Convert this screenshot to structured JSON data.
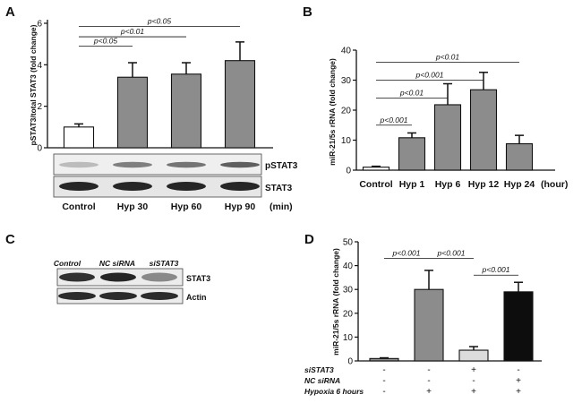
{
  "chart_data": [
    {
      "panel": "A",
      "type": "bar",
      "title": "",
      "ylabel": "pSTAT3/total STAT3 (fold change)",
      "xlabel": "(min)",
      "ylim": [
        0,
        6
      ],
      "yticks": [
        "0",
        "2",
        "4",
        "6"
      ],
      "categories": [
        "Control",
        "Hyp 30",
        "Hyp 60",
        "Hyp 90"
      ],
      "values": [
        1.0,
        3.4,
        3.55,
        4.2
      ],
      "errors": [
        0.15,
        0.7,
        0.55,
        0.9
      ],
      "colors": [
        "#ffffff",
        "#8c8c8c",
        "#8c8c8c",
        "#8c8c8c"
      ],
      "significance": [
        {
          "label": "p<0.05",
          "from": 0,
          "to": 1,
          "level": 4.9
        },
        {
          "label": "p<0.01",
          "from": 0,
          "to": 2,
          "level": 5.35
        },
        {
          "label": "p<0.05",
          "from": 0,
          "to": 3,
          "level": 5.85
        }
      ],
      "blot_labels": [
        "pSTAT3",
        "STAT3"
      ]
    },
    {
      "panel": "B",
      "type": "bar",
      "title": "",
      "ylabel": "miR-21/5s rRNA (fold change)",
      "xlabel": "(hour)",
      "ylim": [
        0,
        40
      ],
      "yticks": [
        "0",
        "10",
        "20",
        "30",
        "40"
      ],
      "categories": [
        "Control",
        "Hyp 1",
        "Hyp 6",
        "Hyp 12",
        "Hyp 24"
      ],
      "values": [
        1.0,
        10.8,
        21.8,
        26.8,
        8.8
      ],
      "errors": [
        0.3,
        1.6,
        7.0,
        5.8,
        2.8
      ],
      "colors": [
        "#ffffff",
        "#8c8c8c",
        "#8c8c8c",
        "#8c8c8c",
        "#8c8c8c"
      ],
      "significance": [
        {
          "label": "p<0.001",
          "from": 0,
          "to": 1,
          "level": 15
        },
        {
          "label": "p<0.01",
          "from": 0,
          "to": 2,
          "level": 24
        },
        {
          "label": "p<0.001",
          "from": 0,
          "to": 3,
          "level": 30
        },
        {
          "label": "p<0.01",
          "from": 0,
          "to": 4,
          "level": 36
        }
      ]
    },
    {
      "panel": "C",
      "type": "table",
      "lane_labels": [
        "Control",
        "NC siRNA",
        "siSTAT3"
      ],
      "blot_labels": [
        "STAT3",
        "Actin"
      ]
    },
    {
      "panel": "D",
      "type": "bar",
      "title": "",
      "ylabel": "miR-21/5s rRNA (fold change)",
      "ylim": [
        0,
        50
      ],
      "yticks": [
        "0",
        "10",
        "20",
        "30",
        "40",
        "50"
      ],
      "values": [
        1.0,
        30.0,
        4.5,
        29.0
      ],
      "errors": [
        0.3,
        8.0,
        1.5,
        4.0
      ],
      "colors": [
        "#8c8c8c",
        "#8c8c8c",
        "#dcdcdc",
        "#0d0d0d"
      ],
      "significance": [
        {
          "label": "p<0.001",
          "from": 0,
          "to": 1,
          "level": 43
        },
        {
          "label": "p<0.001",
          "from": 1,
          "to": 2,
          "level": 43
        },
        {
          "label": "p<0.001",
          "from": 2,
          "to": 3,
          "level": 36
        }
      ],
      "conditions": [
        {
          "label": "siSTAT3",
          "signs": [
            "-",
            "-",
            "+",
            "-"
          ]
        },
        {
          "label": "NC siRNA",
          "signs": [
            "-",
            "-",
            "-",
            "+"
          ]
        },
        {
          "label": "Hypoxia  6 hours",
          "signs": [
            "-",
            "+",
            "+",
            "+"
          ]
        }
      ]
    }
  ]
}
